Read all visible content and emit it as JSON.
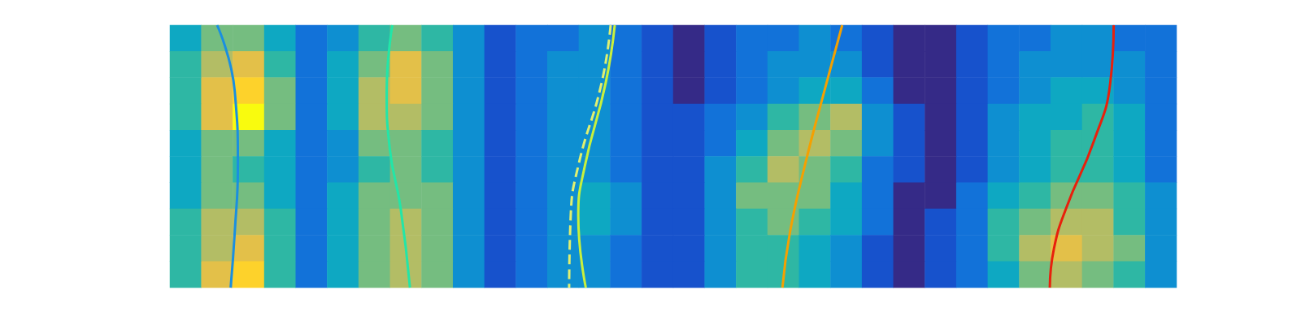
{
  "chart_data": {
    "type": "heatmap",
    "tick_labels": false,
    "color_range": [
      0,
      10
    ],
    "cells": [
      [
        4,
        6,
        6,
        4,
        2,
        3,
        5,
        6,
        5,
        3,
        1,
        2,
        2,
        3,
        2,
        1,
        0,
        1,
        2,
        2,
        3,
        2,
        1,
        0,
        0,
        1,
        2,
        2,
        3,
        3,
        2,
        2
      ],
      [
        5,
        7,
        8,
        5,
        2,
        4,
        6,
        8,
        6,
        3,
        1,
        2,
        3,
        3,
        2,
        1,
        0,
        1,
        2,
        3,
        3,
        3,
        1,
        0,
        0,
        1,
        2,
        3,
        3,
        3,
        3,
        2
      ],
      [
        5,
        8,
        9,
        6,
        2,
        4,
        7,
        8,
        6,
        3,
        1,
        2,
        3,
        3,
        2,
        1,
        0,
        1,
        2,
        3,
        4,
        4,
        2,
        0,
        0,
        1,
        2,
        3,
        4,
        4,
        3,
        2
      ],
      [
        5,
        8,
        10,
        6,
        2,
        4,
        7,
        7,
        6,
        3,
        1,
        2,
        3,
        3,
        2,
        1,
        1,
        2,
        3,
        5,
        6,
        7,
        3,
        1,
        0,
        1,
        3,
        4,
        4,
        5,
        4,
        2
      ],
      [
        4,
        6,
        6,
        4,
        2,
        3,
        6,
        6,
        5,
        3,
        1,
        2,
        3,
        3,
        2,
        1,
        1,
        2,
        4,
        6,
        7,
        6,
        3,
        1,
        0,
        1,
        3,
        4,
        5,
        5,
        4,
        2
      ],
      [
        4,
        6,
        5,
        4,
        2,
        3,
        5,
        6,
        5,
        3,
        1,
        2,
        3,
        3,
        2,
        1,
        1,
        3,
        5,
        7,
        6,
        5,
        2,
        1,
        0,
        1,
        3,
        4,
        5,
        5,
        4,
        2
      ],
      [
        4,
        6,
        6,
        4,
        2,
        4,
        6,
        6,
        6,
        3,
        1,
        2,
        3,
        4,
        3,
        1,
        1,
        3,
        6,
        6,
        6,
        4,
        2,
        0,
        0,
        2,
        4,
        5,
        6,
        6,
        5,
        3
      ],
      [
        5,
        7,
        7,
        5,
        2,
        4,
        6,
        7,
        6,
        3,
        1,
        2,
        3,
        4,
        3,
        1,
        1,
        3,
        5,
        6,
        5,
        4,
        2,
        0,
        1,
        2,
        5,
        6,
        7,
        7,
        5,
        3
      ],
      [
        5,
        7,
        8,
        5,
        2,
        4,
        6,
        7,
        6,
        3,
        1,
        2,
        3,
        3,
        2,
        1,
        1,
        3,
        5,
        5,
        4,
        3,
        1,
        0,
        1,
        2,
        5,
        7,
        8,
        7,
        6,
        3
      ],
      [
        5,
        8,
        9,
        5,
        2,
        4,
        6,
        7,
        6,
        3,
        1,
        2,
        3,
        3,
        2,
        1,
        1,
        3,
        5,
        5,
        4,
        3,
        1,
        0,
        1,
        2,
        4,
        6,
        7,
        6,
        5,
        3
      ]
    ],
    "xlim": [
      0,
      32
    ],
    "ylim": [
      0,
      10
    ],
    "series": [
      {
        "type": "line",
        "color": "#1a8fe0",
        "line_style": "solid",
        "x": [
          1.5,
          2.06,
          2.16,
          2.06,
          1.93
        ],
        "y": [
          10,
          7.48,
          4.64,
          2.11,
          0
        ]
      },
      {
        "type": "line",
        "color": "#22e6a8",
        "line_style": "solid",
        "x": [
          7.07,
          6.89,
          6.99,
          7.33,
          7.63
        ],
        "y": [
          10,
          7.48,
          5.27,
          3.06,
          0
        ]
      },
      {
        "type": "line",
        "color": "#c8f03c",
        "line_style": "solid",
        "x": [
          14.14,
          13.85,
          13.19,
          12.98,
          13.22
        ],
        "y": [
          10,
          7.79,
          4.64,
          2.74,
          0
        ]
      },
      {
        "type": "line",
        "color": "#e0f070",
        "line_style": "dashed",
        "x": [
          14.01,
          13.72,
          12.98,
          12.74,
          12.69
        ],
        "y": [
          10,
          7.79,
          4.64,
          2.74,
          0
        ]
      },
      {
        "type": "line",
        "color": "#f5a000",
        "line_style": "solid",
        "x": [
          21.37,
          20.87,
          20.18,
          19.71,
          19.47
        ],
        "y": [
          10,
          7.79,
          4.64,
          2.11,
          0
        ]
      },
      {
        "type": "line",
        "color": "#e8200c",
        "line_style": "solid",
        "x": [
          30.0,
          29.89,
          29.37,
          28.5,
          28.1,
          27.97
        ],
        "y": [
          10,
          7.79,
          5.58,
          3.06,
          1.48,
          0
        ]
      }
    ]
  }
}
